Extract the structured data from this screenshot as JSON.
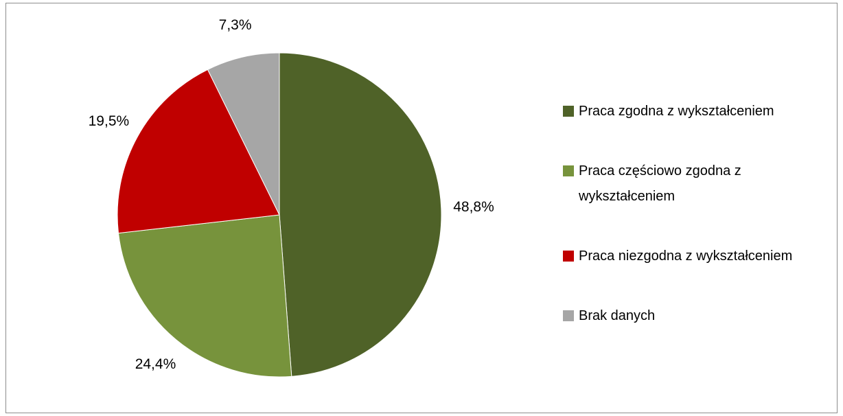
{
  "chart_data": {
    "type": "pie",
    "categories": [
      "Praca zgodna z wykształceniem",
      "Praca częściowo zgodna z wykształceniem",
      "Praca niezgodna z wykształceniem",
      "Brak danych"
    ],
    "values": [
      48.8,
      24.4,
      19.5,
      7.3
    ],
    "value_labels": [
      "48,8%",
      "24,4%",
      "19,5%",
      "7,3%"
    ],
    "colors": [
      "#4f6228",
      "#77933c",
      "#c00000",
      "#a6a6a6"
    ],
    "legend": "right"
  }
}
